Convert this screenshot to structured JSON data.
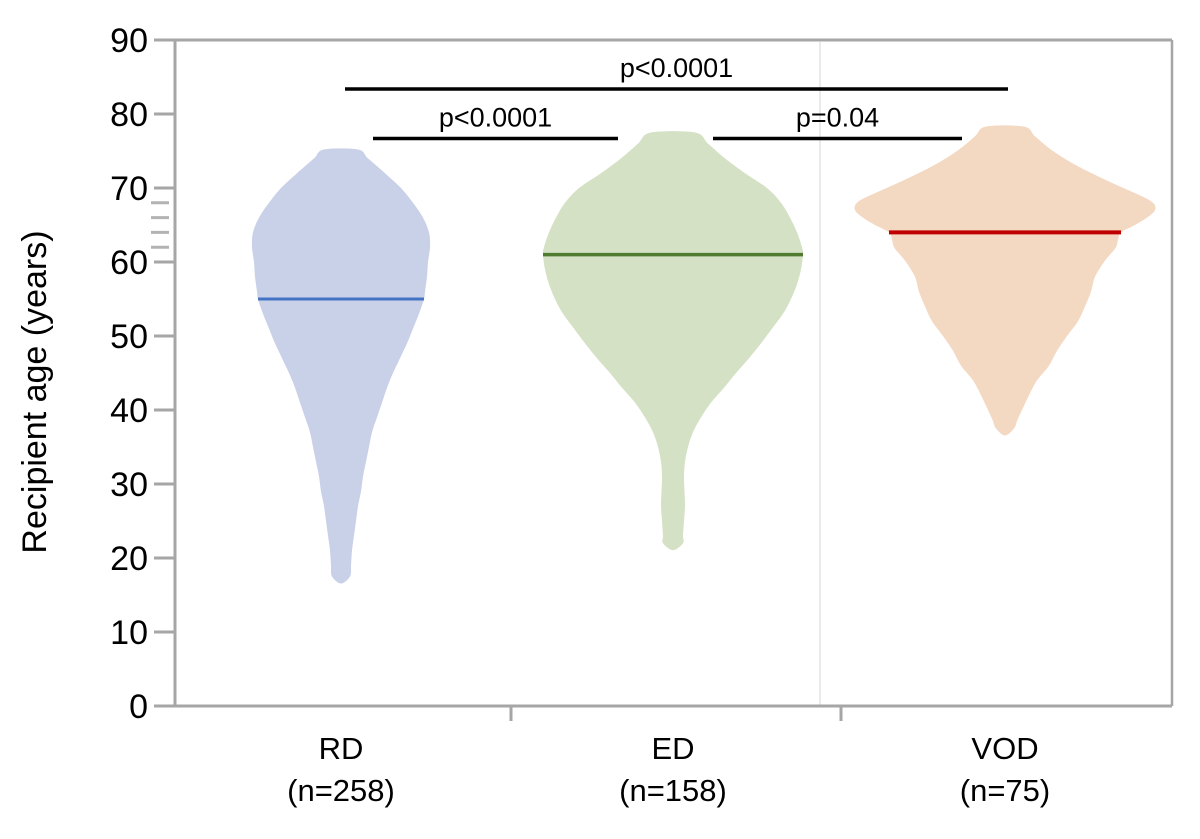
{
  "chart_data": {
    "type": "violin",
    "title": "",
    "xlabel": "",
    "ylabel": "Recipient age (years)",
    "ylim": [
      0,
      90
    ],
    "yticks": [
      90,
      80,
      70,
      60,
      50,
      40,
      30,
      20,
      10,
      0
    ],
    "minor_ticks": [
      68,
      66,
      64,
      62
    ],
    "grid": false,
    "legend": false,
    "groups": [
      {
        "label": "RD",
        "n_label": "(n=258)",
        "n": 258,
        "median": 55,
        "age_min": 17.5,
        "age_max": 75.2,
        "fill": "#c9d1e9",
        "median_color": "#4472c4",
        "median_halfwidth": 83,
        "profile": [
          [
            75.2,
            17
          ],
          [
            74,
            27
          ],
          [
            72,
            44
          ],
          [
            70,
            60
          ],
          [
            68,
            72
          ],
          [
            66,
            82
          ],
          [
            64,
            88
          ],
          [
            62,
            89
          ],
          [
            60,
            87
          ],
          [
            58,
            86
          ],
          [
            56,
            84
          ],
          [
            55,
            83
          ],
          [
            53,
            78
          ],
          [
            51,
            72
          ],
          [
            49,
            66
          ],
          [
            47,
            59
          ],
          [
            45,
            52
          ],
          [
            43,
            46
          ],
          [
            41,
            41
          ],
          [
            39,
            36
          ],
          [
            37,
            31
          ],
          [
            35,
            28
          ],
          [
            33,
            25
          ],
          [
            31,
            22
          ],
          [
            29,
            20
          ],
          [
            27,
            17
          ],
          [
            25,
            15
          ],
          [
            23,
            13
          ],
          [
            21,
            11
          ],
          [
            19,
            10
          ],
          [
            17.5,
            9
          ]
        ]
      },
      {
        "label": "ED",
        "n_label": "(n=158)",
        "n": 158,
        "median": 61,
        "age_min": 22,
        "age_max": 77.5,
        "fill": "#d4e1c5",
        "median_color": "#4e7b30",
        "median_halfwidth": 130,
        "profile": [
          [
            77.5,
            22
          ],
          [
            76,
            35
          ],
          [
            74,
            52
          ],
          [
            72,
            72
          ],
          [
            70,
            94
          ],
          [
            68,
            108
          ],
          [
            66,
            117
          ],
          [
            64,
            124
          ],
          [
            62,
            129
          ],
          [
            61,
            130
          ],
          [
            59,
            128
          ],
          [
            57,
            124
          ],
          [
            55,
            118
          ],
          [
            53,
            110
          ],
          [
            51,
            99
          ],
          [
            49,
            88
          ],
          [
            47,
            76
          ],
          [
            45,
            63
          ],
          [
            43,
            51
          ],
          [
            41,
            38
          ],
          [
            39,
            28
          ],
          [
            37,
            20
          ],
          [
            35,
            15
          ],
          [
            33,
            12
          ],
          [
            31,
            11
          ],
          [
            29,
            11.5
          ],
          [
            27,
            12
          ],
          [
            25,
            11
          ],
          [
            23,
            10
          ],
          [
            22,
            10
          ]
        ]
      },
      {
        "label": "VOD",
        "n_label": "(n=75)",
        "n": 75,
        "median": 64,
        "age_min": 37.5,
        "age_max": 78.3,
        "fill": "#f3d8c2",
        "median_color": "#c00000",
        "median_halfwidth": 116,
        "profile": [
          [
            78.3,
            19
          ],
          [
            77,
            30
          ],
          [
            75,
            48
          ],
          [
            73,
            72
          ],
          [
            71,
            102
          ],
          [
            69,
            135
          ],
          [
            68,
            148
          ],
          [
            67,
            150
          ],
          [
            66,
            142
          ],
          [
            65,
            130
          ],
          [
            64,
            116
          ],
          [
            63,
            113
          ],
          [
            62,
            111
          ],
          [
            61,
            105
          ],
          [
            60,
            99
          ],
          [
            58,
            90
          ],
          [
            56,
            86
          ],
          [
            54,
            80
          ],
          [
            52,
            73
          ],
          [
            50,
            62
          ],
          [
            48,
            52
          ],
          [
            46,
            44
          ],
          [
            44,
            32
          ],
          [
            42,
            24
          ],
          [
            40,
            17
          ],
          [
            38.5,
            12
          ],
          [
            37.5,
            9
          ]
        ]
      }
    ],
    "comparisons": [
      {
        "group_a": "RD",
        "group_b": "VOD",
        "p_label": "p<0.0001"
      },
      {
        "group_a": "RD",
        "group_b": "ED",
        "p_label": "p<0.0001"
      },
      {
        "group_a": "ED",
        "group_b": "VOD",
        "p_label": "p=0.04"
      }
    ]
  },
  "colors": {
    "axis": "#a6a6a6",
    "minor_tick": "#b3b3b3",
    "separator_line": "#e4e4e4",
    "significance_bar": "#000000",
    "text": "#000000",
    "background": "#ffffff"
  }
}
